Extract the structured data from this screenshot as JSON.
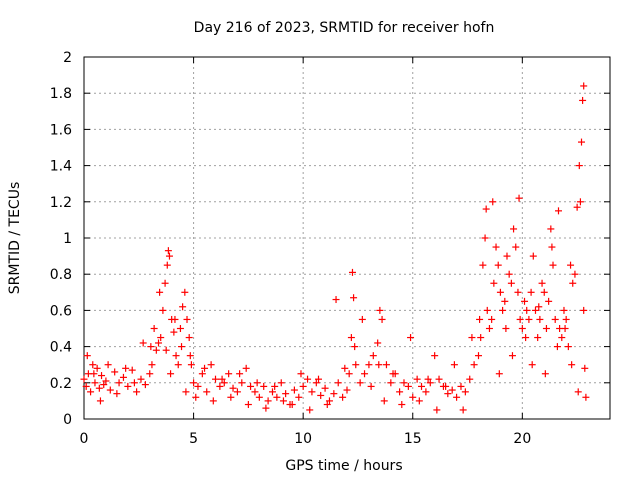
{
  "chart_data": {
    "type": "scatter",
    "title": "Day 216 of 2023, SRMTID for receiver hofn",
    "xlabel": "GPS time / hours",
    "ylabel": "SRMTID / TECUs",
    "xlim": [
      0,
      24
    ],
    "ylim": [
      0,
      2
    ],
    "xticks": [
      0,
      5,
      10,
      15,
      20
    ],
    "yticks": [
      0,
      0.2,
      0.4,
      0.6,
      0.8,
      1,
      1.2,
      1.4,
      1.6,
      1.8,
      2
    ],
    "xtick_labels": [
      "0",
      "5",
      "10",
      "15",
      "20"
    ],
    "ytick_labels": [
      "0",
      "0.2",
      "0.4",
      "0.6",
      "0.8",
      "1",
      "1.2",
      "1.4",
      "1.6",
      "1.8",
      "2"
    ],
    "grid": true,
    "marker": "+",
    "marker_color": "#ff0000",
    "series": [
      {
        "name": "hofn",
        "x": [
          0.0,
          0.1,
          0.2,
          0.3,
          0.4,
          0.5,
          0.6,
          0.7,
          0.8,
          0.9,
          1.0,
          1.2,
          1.4,
          1.6,
          1.8,
          2.0,
          2.2,
          2.4,
          2.6,
          2.8,
          3.0,
          3.1,
          3.2,
          3.3,
          3.4,
          3.5,
          3.6,
          3.7,
          3.8,
          3.85,
          3.9,
          4.0,
          4.1,
          4.2,
          4.3,
          4.4,
          4.5,
          4.6,
          4.7,
          4.8,
          4.9,
          5.0,
          5.2,
          5.4,
          5.6,
          5.8,
          6.0,
          6.2,
          6.4,
          6.6,
          6.8,
          7.0,
          7.2,
          7.4,
          7.6,
          7.8,
          8.0,
          8.2,
          8.4,
          8.6,
          8.8,
          9.0,
          9.2,
          9.4,
          9.6,
          9.8,
          10.0,
          10.2,
          10.4,
          10.6,
          10.8,
          11.0,
          11.2,
          11.4,
          11.6,
          11.8,
          12.0,
          12.1,
          12.2,
          12.25,
          12.3,
          12.4,
          12.6,
          12.8,
          13.0,
          13.2,
          13.4,
          13.5,
          13.6,
          13.8,
          14.0,
          14.2,
          14.4,
          14.6,
          14.8,
          15.0,
          15.2,
          15.4,
          15.6,
          15.8,
          16.0,
          16.2,
          16.4,
          16.6,
          16.8,
          17.0,
          17.2,
          17.4,
          17.6,
          17.8,
          18.0,
          18.1,
          18.2,
          18.3,
          18.4,
          18.5,
          18.6,
          18.7,
          18.8,
          18.9,
          19.0,
          19.1,
          19.2,
          19.3,
          19.4,
          19.5,
          19.6,
          19.7,
          19.8,
          19.9,
          20.0,
          20.1,
          20.2,
          20.3,
          20.4,
          20.5,
          20.6,
          20.7,
          20.8,
          20.9,
          21.0,
          21.1,
          21.2,
          21.3,
          21.4,
          21.5,
          21.6,
          21.7,
          21.8,
          21.9,
          22.0,
          22.1,
          22.2,
          22.3,
          22.4,
          22.5,
          22.6,
          22.65,
          22.7,
          22.75,
          22.8,
          22.85,
          22.9,
          0.15,
          0.45,
          0.75,
          1.1,
          1.5,
          1.9,
          2.3,
          2.7,
          3.05,
          3.45,
          3.75,
          3.95,
          4.15,
          4.45,
          4.65,
          4.85,
          5.1,
          5.5,
          5.9,
          6.3,
          6.7,
          7.1,
          7.5,
          7.9,
          8.3,
          8.7,
          9.1,
          9.5,
          9.9,
          10.3,
          10.7,
          11.1,
          11.5,
          11.9,
          12.35,
          12.7,
          13.1,
          13.45,
          13.7,
          14.1,
          14.5,
          14.9,
          15.3,
          15.7,
          16.1,
          16.5,
          16.9,
          17.3,
          17.7,
          18.05,
          18.35,
          18.65,
          18.95,
          19.25,
          19.55,
          19.85,
          20.15,
          20.45,
          20.75,
          21.05,
          21.35,
          21.65,
          21.95,
          22.25,
          22.55,
          22.8
        ],
        "y": [
          0.22,
          0.18,
          0.25,
          0.15,
          0.3,
          0.2,
          0.28,
          0.17,
          0.24,
          0.19,
          0.21,
          0.16,
          0.26,
          0.2,
          0.23,
          0.18,
          0.27,
          0.15,
          0.22,
          0.19,
          0.25,
          0.3,
          0.5,
          0.38,
          0.42,
          0.45,
          0.6,
          0.75,
          0.85,
          0.93,
          0.9,
          0.55,
          0.48,
          0.35,
          0.3,
          0.5,
          0.62,
          0.7,
          0.55,
          0.45,
          0.3,
          0.2,
          0.18,
          0.25,
          0.15,
          0.3,
          0.22,
          0.18,
          0.2,
          0.25,
          0.17,
          0.15,
          0.2,
          0.28,
          0.18,
          0.15,
          0.12,
          0.18,
          0.1,
          0.15,
          0.12,
          0.2,
          0.14,
          0.08,
          0.16,
          0.12,
          0.18,
          0.22,
          0.15,
          0.2,
          0.13,
          0.17,
          0.1,
          0.14,
          0.2,
          0.12,
          0.16,
          0.25,
          0.45,
          0.81,
          0.67,
          0.3,
          0.2,
          0.25,
          0.3,
          0.35,
          0.42,
          0.6,
          0.55,
          0.3,
          0.2,
          0.25,
          0.15,
          0.2,
          0.18,
          0.12,
          0.22,
          0.18,
          0.15,
          0.2,
          0.35,
          0.22,
          0.18,
          0.14,
          0.16,
          0.12,
          0.18,
          0.15,
          0.22,
          0.3,
          0.35,
          0.45,
          0.85,
          1.0,
          0.6,
          0.5,
          0.55,
          0.75,
          0.95,
          0.85,
          0.7,
          0.6,
          0.65,
          0.9,
          0.8,
          0.75,
          1.05,
          0.95,
          0.7,
          0.55,
          0.5,
          0.65,
          0.6,
          0.55,
          0.7,
          0.9,
          0.6,
          0.45,
          0.55,
          0.75,
          0.7,
          0.5,
          0.65,
          1.05,
          0.85,
          0.55,
          0.4,
          0.5,
          0.45,
          0.6,
          0.55,
          0.4,
          0.85,
          0.75,
          0.8,
          1.17,
          1.4,
          1.2,
          1.53,
          1.76,
          1.84,
          0.28,
          0.12,
          0.35,
          0.25,
          0.1,
          0.3,
          0.14,
          0.28,
          0.2,
          0.42,
          0.4,
          0.7,
          0.38,
          0.25,
          0.55,
          0.4,
          0.15,
          0.35,
          0.12,
          0.28,
          0.1,
          0.22,
          0.12,
          0.25,
          0.08,
          0.2,
          0.06,
          0.18,
          0.1,
          0.08,
          0.25,
          0.05,
          0.22,
          0.08,
          0.66,
          0.28,
          0.4,
          0.55,
          0.18,
          0.3,
          0.1,
          0.25,
          0.08,
          0.45,
          0.1,
          0.22,
          0.05,
          0.18,
          0.3,
          0.05,
          0.45,
          0.55,
          1.16,
          1.2,
          0.25,
          0.5,
          0.35,
          1.22,
          0.45,
          0.3,
          0.62,
          0.25,
          0.95,
          1.15,
          0.5,
          0.3,
          0.15,
          0.6
        ]
      }
    ]
  }
}
